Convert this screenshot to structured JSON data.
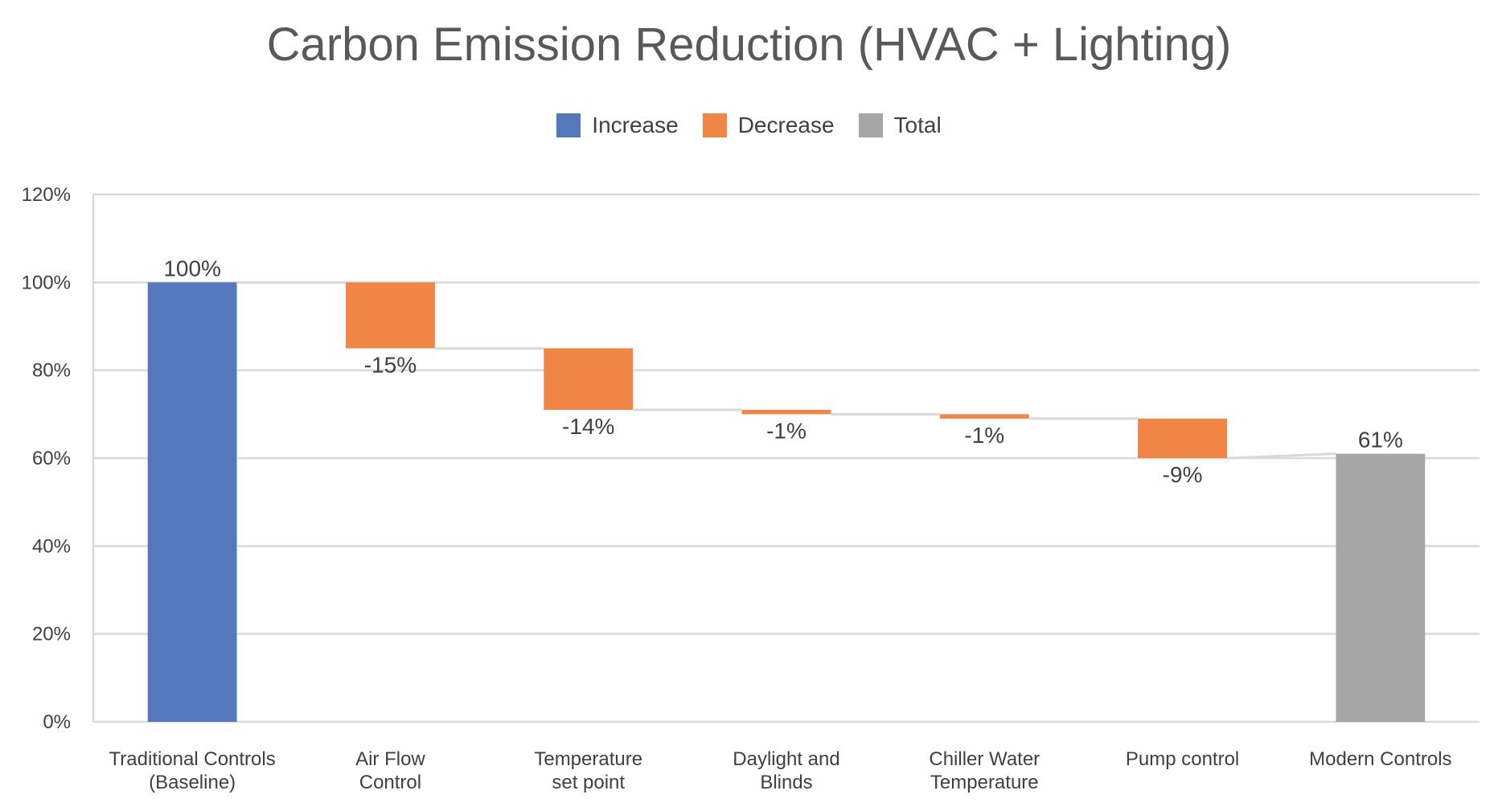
{
  "chart_data": {
    "type": "bar",
    "subtype": "waterfall",
    "title": "Carbon Emission Reduction (HVAC + Lighting)",
    "legend": [
      {
        "name": "Increase",
        "color": "#5577BB"
      },
      {
        "name": "Decrease",
        "color": "#F08546"
      },
      {
        "name": "Total",
        "color": "#A6A6A6"
      }
    ],
    "legend_position": "top",
    "categories": [
      [
        "Traditional Controls",
        "(Baseline)"
      ],
      [
        "Air Flow",
        "Control"
      ],
      [
        "Temperature",
        "set point"
      ],
      [
        "Daylight and",
        "Blinds"
      ],
      [
        "Chiller Water",
        "Temperature"
      ],
      [
        "Pump control"
      ],
      [
        "Modern Controls"
      ]
    ],
    "values": [
      100,
      -15,
      -14,
      -1,
      -1,
      -9,
      61
    ],
    "kinds": [
      "increase",
      "decrease",
      "decrease",
      "decrease",
      "decrease",
      "decrease",
      "total"
    ],
    "data_labels": [
      "100%",
      "-15%",
      "-14%",
      "-1%",
      "-1%",
      "-9%",
      "61%"
    ],
    "ylim": [
      0,
      120
    ],
    "yticks": [
      0,
      20,
      40,
      60,
      80,
      100,
      120
    ],
    "ytick_labels": [
      "0%",
      "20%",
      "40%",
      "60%",
      "80%",
      "100%",
      "120%"
    ],
    "grid": true,
    "connector_color": "#D9D9D9"
  }
}
